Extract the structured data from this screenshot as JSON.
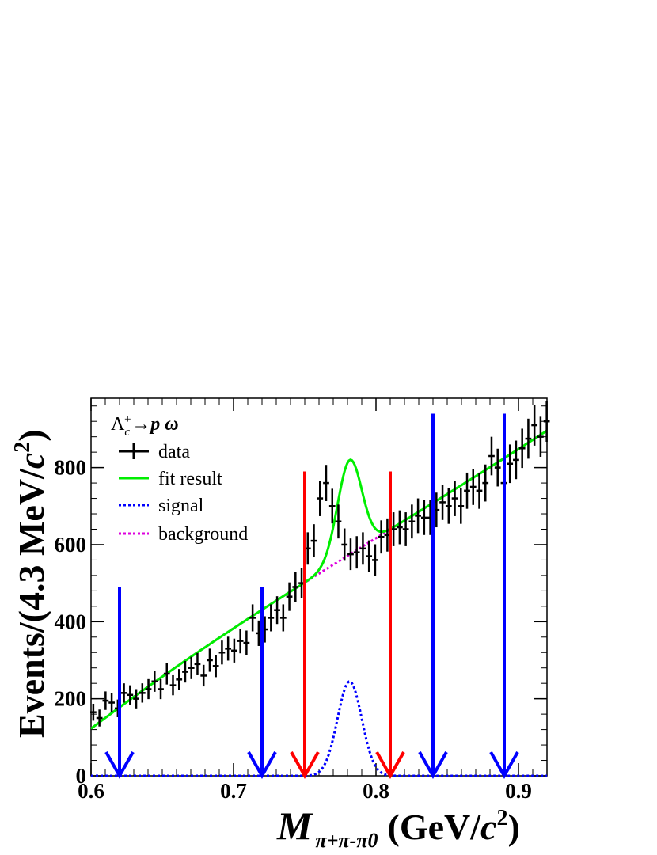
{
  "chart_data": {
    "type": "line",
    "title": "Λc+→p ω",
    "title_parts": {
      "lambda": "Λ",
      "sub": "c",
      "sup": "+",
      "arrow": "→",
      "p": "p",
      "omega": "ω"
    },
    "xlabel": "M π+π-π0 (GeV/c2)",
    "xlabel_parts": {
      "m": "M",
      "sub": "π+π-π0",
      "unit_prefix": "(GeV/",
      "unit_c": "c",
      "unit_exp": "2",
      "unit_suffix": ")"
    },
    "ylabel": "Events/(4.3 MeV/c2)",
    "ylabel_parts": {
      "prefix": "Events/(4.3 MeV/",
      "c": "c",
      "exp": "2",
      "suffix": ")"
    },
    "xlim": [
      0.6,
      0.92
    ],
    "ylim": [
      0,
      980
    ],
    "x_ticks": [
      0.6,
      0.7,
      0.8,
      0.9
    ],
    "x_tick_labels": [
      "0.6",
      "0.7",
      "0.8",
      "0.9"
    ],
    "y_ticks": [
      0,
      200,
      400,
      600,
      800
    ],
    "y_tick_labels": [
      "0",
      "200",
      "400",
      "600",
      "800"
    ],
    "grid": false,
    "legend_position": "top-left",
    "legend": [
      {
        "label": "data",
        "color": "#000000",
        "style": "errorbar"
      },
      {
        "label": "fit result",
        "color": "#00ee00",
        "style": "solid"
      },
      {
        "label": "signal",
        "color": "#0000ff",
        "style": "dotted"
      },
      {
        "label": "background",
        "color": "#dd00dd",
        "style": "dotted"
      }
    ],
    "data_points": {
      "x": [
        0.6016,
        0.6059,
        0.6102,
        0.6145,
        0.6188,
        0.6231,
        0.6274,
        0.6317,
        0.636,
        0.6403,
        0.6446,
        0.6489,
        0.6532,
        0.6575,
        0.6618,
        0.6661,
        0.6704,
        0.6747,
        0.679,
        0.6833,
        0.6876,
        0.6919,
        0.6962,
        0.7005,
        0.7048,
        0.7091,
        0.7134,
        0.7177,
        0.722,
        0.7263,
        0.7306,
        0.7349,
        0.7392,
        0.7435,
        0.7478,
        0.7521,
        0.7564,
        0.7607,
        0.765,
        0.7693,
        0.7736,
        0.7779,
        0.7822,
        0.7865,
        0.7908,
        0.7951,
        0.7994,
        0.8037,
        0.808,
        0.8123,
        0.8166,
        0.8209,
        0.8252,
        0.8295,
        0.8338,
        0.8381,
        0.8424,
        0.8467,
        0.851,
        0.8553,
        0.8596,
        0.8639,
        0.8682,
        0.8725,
        0.8768,
        0.8811,
        0.8854,
        0.8897,
        0.894,
        0.8983,
        0.9026,
        0.9069,
        0.9112,
        0.9155,
        0.9198
      ],
      "y": [
        165,
        150,
        195,
        190,
        175,
        215,
        210,
        200,
        215,
        225,
        245,
        225,
        265,
        235,
        250,
        270,
        280,
        290,
        260,
        300,
        285,
        320,
        330,
        325,
        350,
        345,
        410,
        370,
        380,
        410,
        430,
        410,
        465,
        490,
        500,
        590,
        610,
        720,
        760,
        700,
        660,
        600,
        575,
        580,
        590,
        570,
        560,
        620,
        625,
        640,
        645,
        640,
        660,
        675,
        670,
        670,
        690,
        710,
        700,
        720,
        700,
        740,
        750,
        740,
        760,
        830,
        800,
        760,
        810,
        820,
        850,
        875,
        910,
        880,
        920
      ],
      "err": [
        22,
        22,
        24,
        24,
        23,
        25,
        25,
        25,
        25,
        26,
        27,
        26,
        28,
        26,
        27,
        28,
        29,
        29,
        28,
        30,
        29,
        31,
        31,
        31,
        32,
        32,
        35,
        33,
        34,
        35,
        36,
        35,
        37,
        38,
        39,
        42,
        43,
        46,
        47,
        45,
        44,
        42,
        41,
        42,
        42,
        41,
        41,
        43,
        43,
        44,
        44,
        44,
        44,
        45,
        45,
        45,
        45,
        46,
        46,
        46,
        46,
        47,
        47,
        47,
        48,
        50,
        49,
        48,
        50,
        50,
        51,
        52,
        53,
        52,
        53
      ]
    },
    "fit_model": {
      "background_poly": [
        -3300,
        10000,
        -9500,
        3900
      ],
      "signal_amplitude": 245,
      "signal_mean": 0.7815,
      "signal_sigma": 0.0085
    },
    "series": [
      {
        "name": "data",
        "color": "#000000"
      },
      {
        "name": "fit result",
        "color": "#00ee00"
      },
      {
        "name": "signal",
        "color": "#0000ff"
      },
      {
        "name": "background",
        "color": "#dd00dd"
      }
    ],
    "arrows": [
      {
        "x": 0.62,
        "top": 490,
        "color": "#0000ff"
      },
      {
        "x": 0.72,
        "top": 490,
        "color": "#0000ff"
      },
      {
        "x": 0.75,
        "top": 790,
        "color": "#ff0000"
      },
      {
        "x": 0.81,
        "top": 790,
        "color": "#ff0000"
      },
      {
        "x": 0.84,
        "top": 940,
        "color": "#0000ff"
      },
      {
        "x": 0.89,
        "top": 940,
        "color": "#0000ff"
      }
    ]
  }
}
